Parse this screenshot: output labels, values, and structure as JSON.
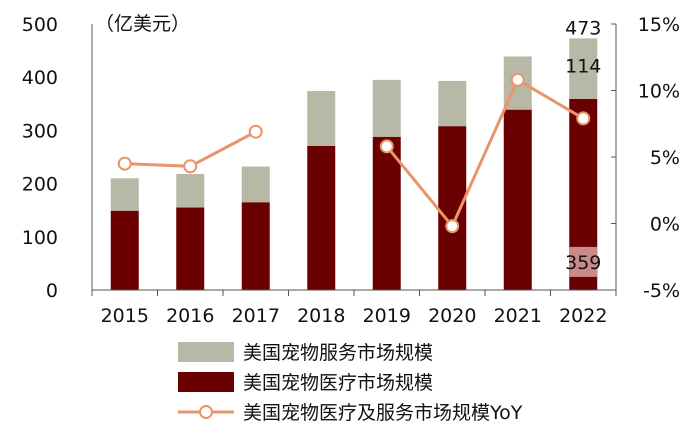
{
  "chart_data": {
    "type": "bar",
    "stacked": true,
    "unit_label": "（亿美元）",
    "categories": [
      "2015",
      "2016",
      "2017",
      "2018",
      "2019",
      "2020",
      "2021",
      "2022"
    ],
    "series": [
      {
        "name": "美国宠物服务市场规模",
        "values": [
          61,
          63,
          67,
          103,
          107,
          85,
          100,
          114
        ],
        "color": "#b7b8a6",
        "axis": "left"
      },
      {
        "name": "美国宠物医疗市场规模",
        "values": [
          149,
          155,
          165,
          271,
          288,
          308,
          339,
          359
        ],
        "color": "#6b0000",
        "axis": "left"
      },
      {
        "name": "美国宠物医疗及服务市场规模YoY",
        "values": [
          4.5,
          4.3,
          6.9,
          null,
          5.8,
          -0.2,
          10.8,
          7.9
        ],
        "color": "#e8956a",
        "type": "line",
        "axis": "right",
        "line_breaks_before": [
          "2019"
        ]
      }
    ],
    "left_axis": {
      "ylim": [
        0,
        500
      ],
      "ticks": [
        "0",
        "100",
        "200",
        "300",
        "400",
        "500"
      ]
    },
    "right_axis": {
      "ylim": [
        -5,
        15
      ],
      "ticks": [
        "-5%",
        "0%",
        "5%",
        "10%",
        "15%"
      ]
    },
    "annotations": [
      {
        "category": "2022",
        "text": "473",
        "position": "above-total"
      },
      {
        "category": "2022",
        "text": "114",
        "position": "service-segment"
      },
      {
        "category": "2022",
        "text": "359",
        "position": "medical-segment"
      }
    ],
    "legend_position": "bottom"
  }
}
